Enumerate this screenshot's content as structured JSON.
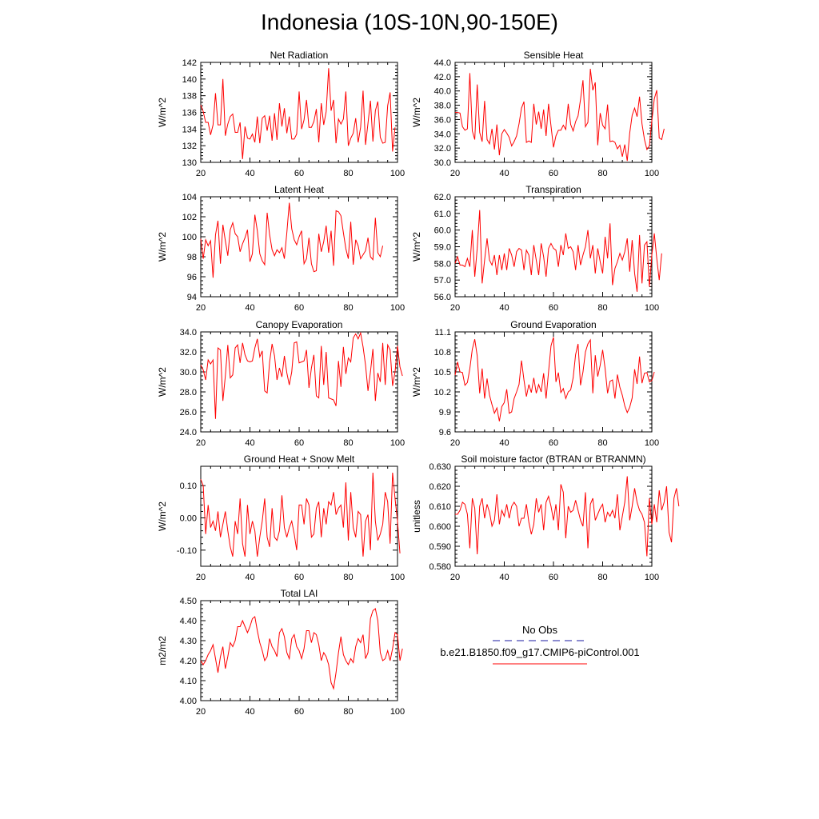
{
  "page": {
    "title": "Indonesia (10S-10N,90-150E)"
  },
  "legend": {
    "obs_label": "No Obs",
    "obs_color": "#1a1aa0",
    "model_label": "b.e21.B1850.f09_g17.CMIP6-piControl.001",
    "model_color": "#ff0000"
  },
  "chart_data": [
    {
      "type": "line",
      "title": "Net Radiation",
      "ylabel": "W/m^2",
      "xlim": [
        20,
        100
      ],
      "xticks": [
        20,
        40,
        60,
        80,
        100
      ],
      "ylim": [
        130,
        142
      ],
      "yticks": [
        "130",
        "132",
        "134",
        "136",
        "138",
        "140",
        "142"
      ],
      "series": [
        {
          "x_start": 20,
          "x_step": 1,
          "color": "#ff0000",
          "values": [
            136.9,
            136.1,
            134.8,
            134.8,
            133.3,
            134.5,
            138.3,
            134.5,
            134.5,
            140.0,
            133.2,
            134.6,
            135.5,
            135.8,
            133.6,
            133.6,
            134.8,
            130.4,
            134.3,
            132.9,
            132.8,
            133.4,
            132.4,
            135.5,
            132.3,
            135.3,
            135.6,
            133.8,
            135.6,
            132.6,
            135.9,
            132.7,
            137.1,
            134.3,
            136.5,
            133.5,
            135.5,
            132.8,
            132.8,
            133.4,
            138.5,
            134.0,
            135.1,
            137.5,
            134.2,
            134.2,
            134.9,
            136.4,
            132.4,
            137.1,
            134.5,
            136.1,
            141.3,
            136.2,
            137.5,
            132.3,
            135.2,
            134.6,
            135.2,
            138.5,
            132.0,
            132.9,
            133.5,
            135.3,
            132.4,
            134.2,
            138.6,
            132.1,
            134.7,
            137.4,
            132.5,
            136.2,
            137.3,
            133.0,
            132.3,
            132.4,
            136.8,
            138.4,
            131.3,
            134.2
          ]
        }
      ]
    },
    {
      "type": "line",
      "title": "Sensible Heat",
      "ylabel": "W/m^2",
      "xlim": [
        20,
        100
      ],
      "xticks": [
        20,
        40,
        60,
        80,
        100
      ],
      "ylim": [
        30,
        44
      ],
      "yticks": [
        "30.0",
        "32.0",
        "34.0",
        "36.0",
        "38.0",
        "40.0",
        "42.0",
        "44.0"
      ],
      "series": [
        {
          "x_start": 20,
          "x_step": 1,
          "color": "#ff0000",
          "values": [
            37.0,
            37.0,
            36.9,
            35.0,
            34.5,
            34.7,
            42.5,
            34.4,
            33.2,
            40.9,
            34.2,
            32.9,
            38.6,
            33.2,
            32.6,
            34.7,
            31.8,
            35.3,
            31.0,
            34.0,
            34.6,
            34.1,
            33.5,
            32.3,
            32.9,
            33.7,
            35.4,
            37.6,
            38.5,
            32.8,
            33.0,
            32.8,
            38.2,
            35.3,
            37.1,
            34.7,
            37.4,
            33.7,
            38.2,
            35.1,
            32.1,
            33.7,
            34.5,
            34.5,
            35.2,
            34.6,
            38.2,
            35.3,
            34.4,
            35.7,
            36.5,
            38.8,
            41.5,
            35.0,
            35.6,
            43.1,
            40.1,
            41.2,
            32.4,
            36.9,
            35.2,
            34.7,
            38.1,
            32.9,
            33.0,
            32.8,
            31.9,
            32.4,
            30.8,
            32.5,
            30.2,
            34.1,
            36.6,
            37.6,
            36.4,
            39.2,
            35.4,
            33.2,
            31.8,
            32.3,
            35.8,
            38.9,
            40.1,
            33.4,
            33.2,
            34.7
          ]
        }
      ]
    },
    {
      "type": "line",
      "title": "Latent Heat",
      "ylabel": "W/m^2",
      "xlim": [
        20,
        100
      ],
      "xticks": [
        20,
        40,
        60,
        80,
        100
      ],
      "ylim": [
        94,
        104
      ],
      "yticks": [
        "94",
        "96",
        "98",
        "100",
        "102",
        "104"
      ],
      "series": [
        {
          "x_start": 20,
          "x_step": 1,
          "color": "#ff0000",
          "values": [
            99.8,
            97.8,
            99.7,
            99.1,
            99.6,
            95.9,
            100.2,
            101.6,
            97.3,
            101.2,
            99.6,
            98.1,
            100.7,
            101.4,
            100.3,
            100.0,
            98.5,
            99.3,
            99.9,
            100.7,
            97.5,
            98.3,
            102.2,
            100.6,
            98.3,
            97.6,
            97.2,
            102.4,
            100.2,
            98.7,
            98.1,
            98.7,
            98.4,
            98.9,
            97.8,
            100.4,
            103.4,
            100.8,
            99.7,
            99.2,
            100.0,
            100.6,
            97.3,
            97.8,
            99.9,
            97.3,
            96.5,
            96.6,
            100.3,
            98.5,
            99.5,
            101.1,
            98.4,
            100.6,
            97.1,
            102.6,
            102.5,
            102.1,
            100.4,
            98.8,
            97.8,
            101.5,
            97.2,
            99.7,
            99.1,
            97.8,
            98.2,
            98.6,
            99.9,
            98.0,
            97.7,
            101.9,
            98.4,
            98.0,
            99.1
          ]
        }
      ]
    },
    {
      "type": "line",
      "title": "Transpiration",
      "ylabel": "W/m^2",
      "xlim": [
        20,
        100
      ],
      "xticks": [
        20,
        40,
        60,
        80,
        100
      ],
      "ylim": [
        56,
        62
      ],
      "yticks": [
        "56.0",
        "57.0",
        "58.0",
        "59.0",
        "60.0",
        "61.0",
        "62.0"
      ],
      "series": [
        {
          "x_start": 20,
          "x_step": 1,
          "color": "#ff0000",
          "values": [
            58.0,
            58.4,
            57.9,
            57.9,
            57.8,
            58.3,
            57.8,
            60.0,
            57.2,
            58.9,
            61.2,
            56.8,
            58.2,
            59.5,
            58.2,
            57.9,
            58.5,
            57.3,
            58.5,
            57.6,
            58.6,
            57.6,
            58.9,
            58.5,
            57.8,
            58.7,
            58.9,
            58.8,
            57.6,
            58.8,
            58.5,
            57.3,
            59.1,
            58.2,
            57.3,
            59.2,
            58.4,
            57.2,
            58.9,
            59.2,
            58.9,
            58.8,
            57.8,
            59.1,
            58.5,
            59.8,
            58.9,
            59.0,
            58.7,
            57.6,
            59.1,
            57.9,
            58.5,
            59.0,
            60.0,
            58.3,
            59.1,
            57.4,
            58.9,
            58.1,
            57.4,
            59.6,
            58.3,
            60.4,
            56.7,
            57.7,
            58.1,
            58.6,
            58.2,
            58.7,
            59.5,
            57.5,
            59.4,
            57.4,
            56.3,
            59.7,
            56.8,
            59.1,
            59.3,
            56.6,
            58.5,
            59.8,
            58.3,
            57.0,
            58.6
          ]
        }
      ]
    },
    {
      "type": "line",
      "title": "Canopy Evaporation",
      "ylabel": "W/m^2",
      "xlim": [
        20,
        100
      ],
      "xticks": [
        20,
        40,
        60,
        80,
        100
      ],
      "ylim": [
        24,
        34
      ],
      "yticks": [
        "24.0",
        "26.0",
        "28.0",
        "30.0",
        "32.0",
        "34.0"
      ],
      "series": [
        {
          "x_start": 20,
          "x_step": 1,
          "color": "#ff0000",
          "values": [
            30.7,
            30.2,
            29.2,
            31.2,
            30.8,
            31.2,
            25.3,
            32.4,
            32.2,
            27.1,
            29.6,
            32.7,
            29.4,
            29.7,
            32.4,
            32.7,
            30.9,
            32.9,
            31.7,
            31.1,
            31.0,
            31.1,
            32.4,
            33.3,
            31.5,
            32.1,
            28.1,
            27.9,
            31.0,
            32.8,
            31.6,
            29.2,
            30.4,
            29.5,
            31.6,
            29.9,
            28.7,
            30.0,
            32.9,
            33.0,
            30.9,
            31.0,
            31.1,
            32.2,
            28.4,
            30.4,
            31.7,
            27.6,
            27.4,
            32.6,
            28.7,
            32.0,
            27.4,
            27.3,
            27.2,
            26.6,
            31.1,
            28.5,
            32.5,
            29.8,
            31.4,
            31.0,
            33.4,
            33.8,
            33.3,
            33.9,
            32.5,
            30.7,
            28.1,
            30.0,
            32.3,
            27.1,
            29.9,
            29.0,
            32.9,
            28.7,
            32.7,
            32.2,
            28.6,
            30.0,
            32.6,
            30.5,
            29.6
          ]
        }
      ]
    },
    {
      "type": "line",
      "title": "Ground Evaporation",
      "ylabel": "W/m^2",
      "xlim": [
        20,
        100
      ],
      "xticks": [
        20,
        40,
        60,
        80,
        100
      ],
      "ylim": [
        9.6,
        11.1
      ],
      "yticks": [
        "9.6",
        "9.9",
        "10.2",
        "10.5",
        "10.8",
        "11.1"
      ],
      "series": [
        {
          "x_start": 20,
          "x_step": 1,
          "color": "#ff0000",
          "values": [
            10.45,
            10.65,
            10.5,
            10.49,
            10.3,
            10.34,
            10.55,
            10.84,
            10.99,
            10.74,
            10.18,
            10.55,
            10.1,
            10.4,
            10.15,
            10.01,
            9.88,
            9.96,
            9.76,
            9.98,
            10.04,
            10.24,
            9.88,
            9.9,
            10.1,
            10.2,
            10.31,
            10.67,
            10.38,
            10.13,
            10.31,
            10.19,
            10.41,
            10.18,
            10.31,
            10.2,
            10.48,
            10.1,
            10.5,
            10.89,
            11.02,
            10.35,
            10.49,
            10.19,
            10.25,
            10.1,
            10.2,
            10.23,
            10.41,
            10.76,
            10.92,
            10.3,
            10.5,
            10.8,
            10.92,
            10.98,
            10.18,
            10.75,
            10.43,
            10.6,
            10.83,
            10.55,
            10.18,
            10.36,
            10.38,
            10.1,
            10.46,
            10.27,
            10.15,
            9.99,
            9.89,
            9.97,
            10.11,
            10.54,
            10.32,
            10.73,
            10.33,
            10.48,
            10.49,
            10.35,
            10.37,
            10.5
          ]
        }
      ]
    },
    {
      "type": "line",
      "title": "Ground Heat + Snow Melt",
      "ylabel": "W/m^2",
      "xlim": [
        20,
        100
      ],
      "xticks": [
        20,
        40,
        60,
        80,
        100
      ],
      "ylim": [
        -0.15,
        0.16
      ],
      "yticks": [
        "-0.10",
        "0.00",
        "0.10"
      ],
      "ytick_values": [
        -0.1,
        0,
        0.1
      ],
      "series": [
        {
          "x_start": 20,
          "x_step": 1,
          "color": "#ff0000",
          "values": [
            0.12,
            0.1,
            -0.05,
            0.04,
            -0.03,
            -0.01,
            -0.04,
            0.02,
            -0.06,
            -0.02,
            0.02,
            -0.04,
            -0.09,
            -0.12,
            -0.01,
            -0.05,
            0.06,
            -0.08,
            -0.12,
            0.04,
            -0.05,
            -0.01,
            -0.04,
            -0.12,
            -0.06,
            -0.01,
            0.06,
            -0.06,
            -0.09,
            0.03,
            -0.06,
            -0.07,
            -0.04,
            0.07,
            -0.03,
            -0.06,
            -0.03,
            -0.01,
            -0.05,
            -0.1,
            0.04,
            0.04,
            -0.02,
            0.06,
            0.04,
            -0.06,
            -0.05,
            0.03,
            0.05,
            -0.06,
            0.03,
            -0.02,
            0.05,
            0.04,
            0.08,
            0.01,
            0.03,
            0.04,
            -0.03,
            0.11,
            -0.07,
            0.08,
            -0.03,
            -0.06,
            0.02,
            0.01,
            -0.12,
            -0.01,
            0.01,
            -0.1,
            0.14,
            -0.01,
            -0.07,
            -0.05,
            -0.02,
            0.08,
            0.05,
            -0.08,
            0.14,
            0.06,
            -0.01,
            -0.11
          ]
        }
      ]
    },
    {
      "type": "line",
      "title": "Soil moisture factor (BTRAN or BTRANMN)",
      "ylabel": "unitless",
      "xlim": [
        20,
        100
      ],
      "xticks": [
        20,
        40,
        60,
        80,
        100
      ],
      "ylim": [
        0.58,
        0.63
      ],
      "yticks": [
        "0.580",
        "0.590",
        "0.600",
        "0.610",
        "0.620",
        "0.630"
      ],
      "series": [
        {
          "x_start": 20,
          "x_step": 1,
          "color": "#ff0000",
          "values": [
            0.606,
            0.606,
            0.608,
            0.612,
            0.611,
            0.606,
            0.589,
            0.614,
            0.609,
            0.586,
            0.61,
            0.614,
            0.604,
            0.611,
            0.607,
            0.6,
            0.603,
            0.616,
            0.601,
            0.608,
            0.605,
            0.611,
            0.604,
            0.61,
            0.612,
            0.61,
            0.6,
            0.604,
            0.604,
            0.611,
            0.602,
            0.596,
            0.601,
            0.614,
            0.607,
            0.611,
            0.598,
            0.612,
            0.615,
            0.61,
            0.603,
            0.611,
            0.598,
            0.621,
            0.617,
            0.594,
            0.61,
            0.607,
            0.608,
            0.613,
            0.608,
            0.603,
            0.6,
            0.617,
            0.589,
            0.611,
            0.614,
            0.603,
            0.606,
            0.609,
            0.611,
            0.602,
            0.607,
            0.605,
            0.608,
            0.604,
            0.616,
            0.598,
            0.605,
            0.612,
            0.625,
            0.603,
            0.61,
            0.619,
            0.612,
            0.608,
            0.606,
            0.602,
            0.585,
            0.614,
            0.601,
            0.611,
            0.602,
            0.618,
            0.608,
            0.612,
            0.62,
            0.597,
            0.592,
            0.614,
            0.619,
            0.61
          ]
        }
      ]
    },
    {
      "type": "line",
      "title": "Total LAI",
      "ylabel": "m2/m2",
      "xlim": [
        20,
        100
      ],
      "xticks": [
        20,
        40,
        60,
        80,
        100
      ],
      "ylim": [
        4.0,
        4.5
      ],
      "yticks": [
        "4.00",
        "4.10",
        "4.20",
        "4.30",
        "4.40",
        "4.50"
      ],
      "series": [
        {
          "x_start": 20,
          "x_step": 1,
          "color": "#ff0000",
          "values": [
            4.2,
            4.18,
            4.2,
            4.23,
            4.25,
            4.28,
            4.21,
            4.14,
            4.22,
            4.27,
            4.16,
            4.22,
            4.29,
            4.27,
            4.3,
            4.37,
            4.37,
            4.4,
            4.37,
            4.34,
            4.37,
            4.41,
            4.42,
            4.35,
            4.29,
            4.25,
            4.2,
            4.22,
            4.31,
            4.27,
            4.25,
            4.22,
            4.34,
            4.36,
            4.32,
            4.24,
            4.21,
            4.31,
            4.33,
            4.27,
            4.25,
            4.21,
            4.26,
            4.35,
            4.35,
            4.29,
            4.34,
            4.33,
            4.28,
            4.2,
            4.24,
            4.22,
            4.18,
            4.09,
            4.06,
            4.14,
            4.24,
            4.32,
            4.23,
            4.2,
            4.18,
            4.21,
            4.19,
            4.27,
            4.31,
            4.29,
            4.33,
            4.21,
            4.24,
            4.41,
            4.45,
            4.46,
            4.4,
            4.24,
            4.2,
            4.21,
            4.25,
            4.2,
            4.26,
            4.34,
            4.33,
            4.2,
            4.26
          ]
        }
      ]
    }
  ]
}
